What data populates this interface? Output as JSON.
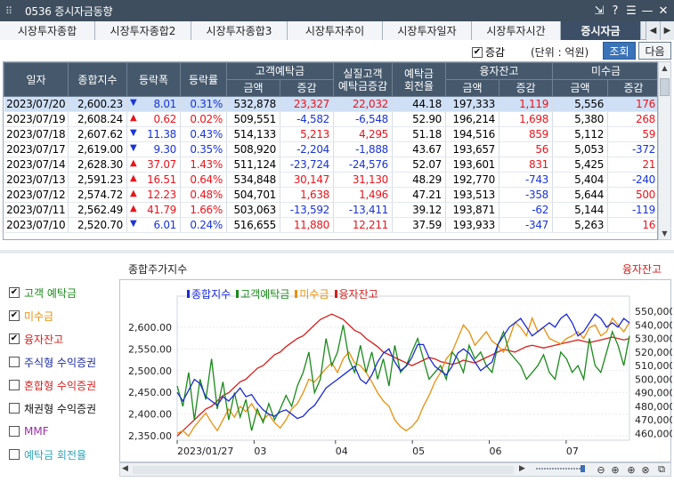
{
  "window": {
    "title": "0536 증시자금동향",
    "buttons": [
      "⇲",
      "?",
      "☰",
      "—",
      "✕"
    ]
  },
  "tabs": [
    {
      "label": "시장투자종합"
    },
    {
      "label": "시장투자종합2"
    },
    {
      "label": "시장투자종합3"
    },
    {
      "label": "시장투자추이"
    },
    {
      "label": "시장투자일자"
    },
    {
      "label": "시장투자시간"
    },
    {
      "label": "증시자금",
      "active": true
    }
  ],
  "toolbar": {
    "increase_label": "증감",
    "increase_checked": true,
    "unit_label": "(단위 : 억원)",
    "query_button": "조회",
    "next_button": "다음"
  },
  "table": {
    "headers": {
      "date": "일자",
      "index": "종합지수",
      "change": "등락폭",
      "rate": "등락률",
      "deposit": "고객예탁금",
      "real_deposit_line1": "실질고객",
      "real_deposit_line2": "예탁금증감",
      "turnover_line1": "예탁금",
      "turnover_line2": "회전율",
      "credit": "융자잔고",
      "unpaid": "미수금",
      "amount": "금액",
      "delta": "증감"
    },
    "rows": [
      {
        "date": "2023/07/20",
        "index": "2,600.23",
        "dir": "down",
        "change": "8.01",
        "rate": "0.31%",
        "dep_amt": "532,878",
        "dep_delta": "23,327",
        "real_delta": "22,032",
        "turnover": "44.18",
        "credit_amt": "197,333",
        "credit_delta": "1,119",
        "unpaid_amt": "5,556",
        "unpaid_delta": "176"
      },
      {
        "date": "2023/07/19",
        "index": "2,608.24",
        "dir": "up",
        "change": "0.62",
        "rate": "0.02%",
        "dep_amt": "509,551",
        "dep_delta": "-4,582",
        "real_delta": "-6,548",
        "turnover": "52.90",
        "credit_amt": "196,214",
        "credit_delta": "1,698",
        "unpaid_amt": "5,380",
        "unpaid_delta": "268"
      },
      {
        "date": "2023/07/18",
        "index": "2,607.62",
        "dir": "down",
        "change": "11.38",
        "rate": "0.43%",
        "dep_amt": "514,133",
        "dep_delta": "5,213",
        "real_delta": "4,295",
        "turnover": "51.18",
        "credit_amt": "194,516",
        "credit_delta": "859",
        "unpaid_amt": "5,112",
        "unpaid_delta": "59"
      },
      {
        "date": "2023/07/17",
        "index": "2,619.00",
        "dir": "down",
        "change": "9.30",
        "rate": "0.35%",
        "dep_amt": "508,920",
        "dep_delta": "-2,204",
        "real_delta": "-1,888",
        "turnover": "43.67",
        "credit_amt": "193,657",
        "credit_delta": "56",
        "unpaid_amt": "5,053",
        "unpaid_delta": "-372"
      },
      {
        "date": "2023/07/14",
        "index": "2,628.30",
        "dir": "up",
        "change": "37.07",
        "rate": "1.43%",
        "dep_amt": "511,124",
        "dep_delta": "-23,724",
        "real_delta": "-24,576",
        "turnover": "52.07",
        "credit_amt": "193,601",
        "credit_delta": "831",
        "unpaid_amt": "5,425",
        "unpaid_delta": "21"
      },
      {
        "date": "2023/07/13",
        "index": "2,591.23",
        "dir": "up",
        "change": "16.51",
        "rate": "0.64%",
        "dep_amt": "534,848",
        "dep_delta": "30,147",
        "real_delta": "31,130",
        "turnover": "48.29",
        "credit_amt": "192,770",
        "credit_delta": "-743",
        "unpaid_amt": "5,404",
        "unpaid_delta": "-240"
      },
      {
        "date": "2023/07/12",
        "index": "2,574.72",
        "dir": "up",
        "change": "12.23",
        "rate": "0.48%",
        "dep_amt": "504,701",
        "dep_delta": "1,638",
        "real_delta": "1,496",
        "turnover": "47.21",
        "credit_amt": "193,513",
        "credit_delta": "-358",
        "unpaid_amt": "5,644",
        "unpaid_delta": "500"
      },
      {
        "date": "2023/07/11",
        "index": "2,562.49",
        "dir": "up",
        "change": "41.79",
        "rate": "1.66%",
        "dep_amt": "503,063",
        "dep_delta": "-13,592",
        "real_delta": "-13,411",
        "turnover": "39.12",
        "credit_amt": "193,871",
        "credit_delta": "-62",
        "unpaid_amt": "5,144",
        "unpaid_delta": "-119"
      },
      {
        "date": "2023/07/10",
        "index": "2,520.70",
        "dir": "down",
        "change": "6.01",
        "rate": "0.24%",
        "dep_amt": "516,655",
        "dep_delta": "11,880",
        "real_delta": "12,211",
        "turnover": "37.59",
        "credit_amt": "193,933",
        "credit_delta": "-347",
        "unpaid_amt": "5,263",
        "unpaid_delta": "16"
      }
    ]
  },
  "chart_header": {
    "left_axis_title": "종합주가지수",
    "right_axis_title": "융자잔고"
  },
  "series_toggles": [
    {
      "label": "고객 예탁금",
      "checked": true,
      "color": "#1a8a1a"
    },
    {
      "label": "미수금",
      "checked": true,
      "color": "#e8900c"
    },
    {
      "label": "융자잔고",
      "checked": true,
      "color": "#d4201c"
    },
    {
      "label": "주식형 수익증권",
      "checked": false,
      "color": "#1a2a9c"
    },
    {
      "label": "혼합형 수익증권",
      "checked": false,
      "color": "#d4201c"
    },
    {
      "label": "채권형 수익증권",
      "checked": false,
      "color": "#111111"
    },
    {
      "label": "MMF",
      "checked": false,
      "color": "#9b2ca8"
    },
    {
      "label": "예탁금 회전율",
      "checked": false,
      "color": "#2aa5b8"
    }
  ],
  "chart_data": {
    "type": "line",
    "legend": [
      {
        "name": "종합지수",
        "color": "#1a2ad0"
      },
      {
        "name": "고객예탁금",
        "color": "#1a8a1a"
      },
      {
        "name": "미수금",
        "color": "#e8900c"
      },
      {
        "name": "융자잔고",
        "color": "#d4201c"
      }
    ],
    "x_tick_labels": [
      "2023/01/27",
      "03",
      "04",
      "05",
      "06",
      "07"
    ],
    "x_ticks_at": [
      0,
      0.17,
      0.35,
      0.52,
      0.69,
      0.86
    ],
    "y_left": {
      "ticks": [
        "2,600.00",
        "2,550.00",
        "2,500.00",
        "2,450.00",
        "2,400.00",
        "2,350.00"
      ],
      "min": 2340,
      "max": 2655
    },
    "y_right": {
      "ticks": [
        "550,000",
        "540,000",
        "530,000",
        "520,000",
        "510,000",
        "500,000",
        "490,000",
        "480,000",
        "470,000",
        "460,000"
      ],
      "min": 455000,
      "max": 556000
    },
    "series": [
      {
        "name": "종합지수",
        "color": "#1a2ad0",
        "axis": "left",
        "values": [
          2450,
          2430,
          2455,
          2480,
          2470,
          2440,
          2430,
          2420,
          2440,
          2430,
          2445,
          2460,
          2440,
          2445,
          2425,
          2410,
          2400,
          2395,
          2405,
          2410,
          2400,
          2390,
          2395,
          2410,
          2420,
          2440,
          2460,
          2470,
          2480,
          2490,
          2500,
          2510,
          2480,
          2470,
          2490,
          2520,
          2540,
          2550,
          2520,
          2500,
          2510,
          2530,
          2560,
          2560,
          2530,
          2510,
          2500,
          2490,
          2510,
          2540,
          2550,
          2540,
          2520,
          2500,
          2510,
          2520,
          2560,
          2580,
          2600,
          2610,
          2620,
          2600,
          2580,
          2590,
          2600,
          2610,
          2600,
          2620,
          2630,
          2610,
          2580,
          2590,
          2610,
          2630,
          2620,
          2600,
          2610,
          2600,
          2620,
          2610
        ]
      },
      {
        "name": "고객예탁금",
        "color": "#1a8a1a",
        "axis": "right",
        "values": [
          495000,
          480000,
          505000,
          470000,
          500000,
          485000,
          515000,
          478000,
          498000,
          470000,
          490000,
          472000,
          485000,
          462000,
          478000,
          468000,
          482000,
          470000,
          478000,
          488000,
          480000,
          495000,
          505000,
          520000,
          490000,
          500000,
          530000,
          510000,
          520000,
          540000,
          515000,
          505000,
          525000,
          505000,
          520000,
          500000,
          515000,
          495000,
          525000,
          505000,
          510000,
          520000,
          530000,
          515000,
          500000,
          505000,
          510000,
          500000,
          520000,
          515000,
          505000,
          525000,
          515000,
          520000,
          510000,
          505000,
          525000,
          535000,
          520000,
          515000,
          510000,
          500000,
          505000,
          510000,
          518000,
          505000,
          500000,
          520000,
          515000,
          505000,
          510000,
          500000,
          530000,
          510000,
          505000,
          520000,
          535000,
          525000,
          510000,
          532000
        ]
      },
      {
        "name": "미수금",
        "color": "#e8900c",
        "axis": "right",
        "values": [
          460000,
          462000,
          458000,
          465000,
          470000,
          475000,
          468000,
          462000,
          470000,
          478000,
          472000,
          480000,
          476000,
          482000,
          475000,
          470000,
          474000,
          468000,
          464000,
          470000,
          478000,
          482000,
          490000,
          500000,
          498000,
          503000,
          508000,
          512000,
          505000,
          515000,
          520000,
          512000,
          510000,
          505000,
          498000,
          490000,
          484000,
          480000,
          470000,
          465000,
          462000,
          465000,
          470000,
          480000,
          488000,
          498000,
          505000,
          515000,
          520000,
          530000,
          540000,
          535000,
          525000,
          530000,
          535000,
          528000,
          525000,
          520000,
          530000,
          542000,
          538000,
          532000,
          545000,
          535000,
          538000,
          530000,
          528000,
          526000,
          530000,
          532000,
          535000,
          530000,
          538000,
          540000,
          532000,
          535000,
          545000,
          540000,
          535000,
          542000
        ]
      },
      {
        "name": "융자잔고",
        "color": "#d4201c",
        "axis": "right",
        "values": [
          458000,
          462000,
          466000,
          470000,
          474000,
          478000,
          480000,
          484000,
          488000,
          490000,
          494000,
          498000,
          500000,
          504000,
          508000,
          510000,
          514000,
          518000,
          520000,
          524000,
          527000,
          530000,
          532000,
          536000,
          540000,
          544000,
          546000,
          548000,
          546000,
          544000,
          540000,
          536000,
          534000,
          530000,
          527000,
          524000,
          520000,
          518000,
          516000,
          514000,
          512000,
          510000,
          512000,
          514000,
          516000,
          515000,
          513000,
          512000,
          511000,
          512000,
          514000,
          513000,
          512000,
          514000,
          516000,
          518000,
          520000,
          522000,
          521000,
          520000,
          522000,
          524000,
          525000,
          524000,
          523000,
          524000,
          525000,
          526000,
          527000,
          528000,
          529000,
          528000,
          527000,
          528000,
          529000,
          530000,
          531000,
          530000,
          529000,
          530000
        ]
      }
    ]
  }
}
